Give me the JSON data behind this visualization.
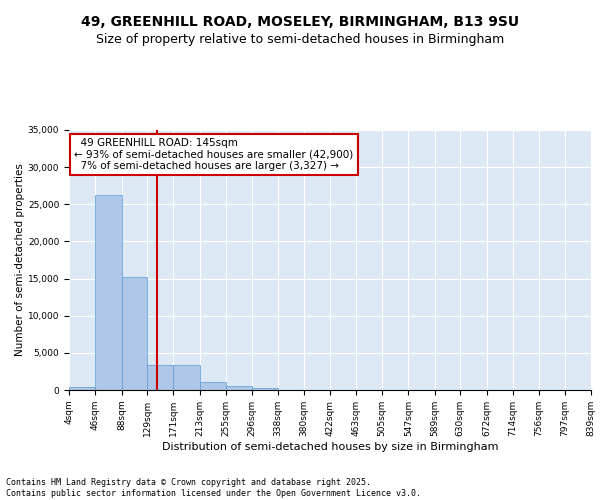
{
  "title1": "49, GREENHILL ROAD, MOSELEY, BIRMINGHAM, B13 9SU",
  "title2": "Size of property relative to semi-detached houses in Birmingham",
  "xlabel": "Distribution of semi-detached houses by size in Birmingham",
  "ylabel": "Number of semi-detached properties",
  "footer": "Contains HM Land Registry data © Crown copyright and database right 2025.\nContains public sector information licensed under the Open Government Licence v3.0.",
  "property_label": "49 GREENHILL ROAD: 145sqm",
  "pct_smaller": 93,
  "count_smaller": 42900,
  "pct_larger": 7,
  "count_larger": 3327,
  "bin_edges": [
    4,
    46,
    88,
    129,
    171,
    213,
    255,
    296,
    338,
    380,
    422,
    463,
    505,
    547,
    589,
    630,
    672,
    714,
    756,
    797,
    839
  ],
  "bin_labels": [
    "4sqm",
    "46sqm",
    "88sqm",
    "129sqm",
    "171sqm",
    "213sqm",
    "255sqm",
    "296sqm",
    "338sqm",
    "380sqm",
    "422sqm",
    "463sqm",
    "505sqm",
    "547sqm",
    "589sqm",
    "630sqm",
    "672sqm",
    "714sqm",
    "756sqm",
    "797sqm",
    "839sqm"
  ],
  "bar_heights": [
    400,
    26200,
    15200,
    3300,
    3300,
    1050,
    500,
    250,
    0,
    0,
    0,
    0,
    0,
    0,
    0,
    0,
    0,
    0,
    0,
    0
  ],
  "bar_color": "#aec6e8",
  "bar_edge_color": "#5b9bd5",
  "vline_color": "#cc0000",
  "vline_x": 145,
  "ylim": [
    0,
    35000
  ],
  "yticks": [
    0,
    5000,
    10000,
    15000,
    20000,
    25000,
    30000,
    35000
  ],
  "annotation_box_color": "#cc0000",
  "background_color": "#dce9f5",
  "grid_color": "#ffffff",
  "title1_fontsize": 10,
  "title2_fontsize": 9,
  "xlabel_fontsize": 8,
  "ylabel_fontsize": 7.5,
  "tick_fontsize": 6.5,
  "annotation_fontsize": 7.5,
  "footer_fontsize": 6
}
